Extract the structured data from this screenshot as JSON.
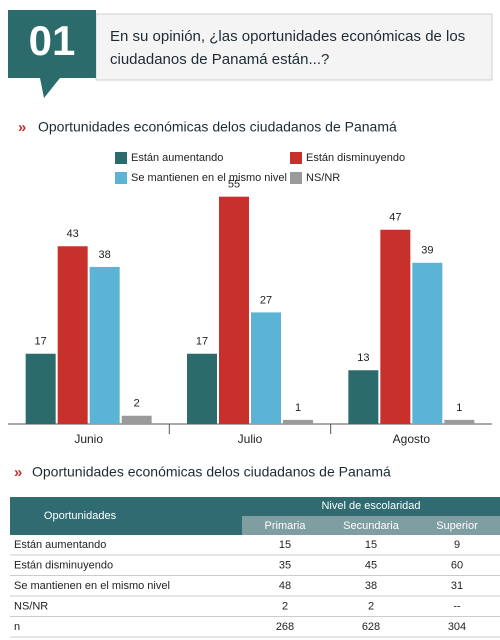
{
  "header": {
    "number": "01",
    "question_line1": "En su opinión, ¿las oportunidades económicas de los",
    "question_line2": "ciudadanos de Panamá están...?"
  },
  "chart_data": {
    "type": "bar",
    "title": "Oportunidades económicas delos ciudadanos de Panamá",
    "categories": [
      "Junio",
      "Julio",
      "Agosto"
    ],
    "series": [
      {
        "name": "Están aumentando",
        "color": "#2b6b6c",
        "values": [
          17,
          17,
          13
        ]
      },
      {
        "name": "Están disminuyendo",
        "color": "#c8312b",
        "values": [
          43,
          55,
          47
        ]
      },
      {
        "name": "Se mantienen en el mismo nivel",
        "color": "#5bb3d5",
        "values": [
          38,
          27,
          39
        ]
      },
      {
        "name": "NS/NR",
        "color": "#9a9a9a",
        "values": [
          2,
          1,
          1
        ]
      }
    ],
    "ylim": [
      0,
      60
    ]
  },
  "table": {
    "title": "Oportunidades económicas delos ciudadanos de Panamá",
    "row_header": "Oportunidades",
    "group_header": "Nivel de escolaridad",
    "columns": [
      "Primaria",
      "Secundaria",
      "Superior"
    ],
    "rows": [
      [
        "Están aumentando",
        15,
        15,
        9
      ],
      [
        "Están disminuyendo",
        35,
        45,
        60
      ],
      [
        "Se mantienen en el mismo nivel",
        48,
        38,
        31
      ],
      [
        "NS/NR",
        2,
        2,
        "--"
      ],
      [
        "n",
        268,
        628,
        304
      ]
    ]
  }
}
